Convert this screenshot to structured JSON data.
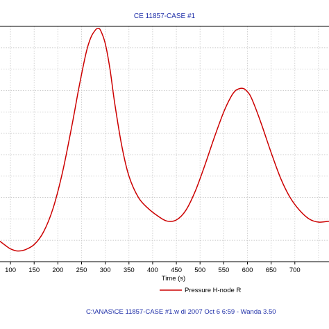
{
  "chart_data": {
    "type": "line",
    "title": "CE 11857-CASE #1",
    "xlabel": "Time (s)",
    "ylabel": "",
    "xlim": [
      75,
      775
    ],
    "ylim": [
      0,
      11
    ],
    "grid": true,
    "legend_placement": "bottom-right",
    "x_ticks": [
      "100",
      "150",
      "200",
      "250",
      "300",
      "350",
      "400",
      "450",
      "500",
      "550",
      "600",
      "650",
      "700"
    ],
    "series": [
      {
        "name": "Pressure H-node R",
        "color": "#cc0000",
        "x": [
          75,
          90,
          100,
          115,
          130,
          150,
          170,
          190,
          210,
          230,
          245,
          260,
          270,
          280,
          285,
          290,
          300,
          310,
          320,
          335,
          350,
          370,
          390,
          410,
          430,
          450,
          470,
          490,
          510,
          530,
          550,
          565,
          575,
          585,
          590,
          595,
          605,
          615,
          630,
          650,
          670,
          690,
          710,
          730,
          750,
          775
        ],
        "values": [
          1.0,
          0.75,
          0.6,
          0.5,
          0.55,
          0.8,
          1.4,
          2.5,
          4.2,
          6.4,
          8.2,
          9.8,
          10.5,
          10.85,
          10.9,
          10.82,
          10.2,
          9.0,
          7.4,
          5.4,
          4.0,
          3.0,
          2.5,
          2.15,
          1.9,
          1.95,
          2.4,
          3.3,
          4.5,
          5.8,
          7.0,
          7.7,
          8.0,
          8.1,
          8.1,
          8.05,
          7.8,
          7.3,
          6.4,
          5.1,
          3.9,
          3.0,
          2.4,
          2.0,
          1.85,
          1.9
        ]
      }
    ]
  },
  "footer": "C:\\ANAS\\CE 11857-CASE #1.w di  2007 Oct 6  6:59 -  Wanda 3.50"
}
